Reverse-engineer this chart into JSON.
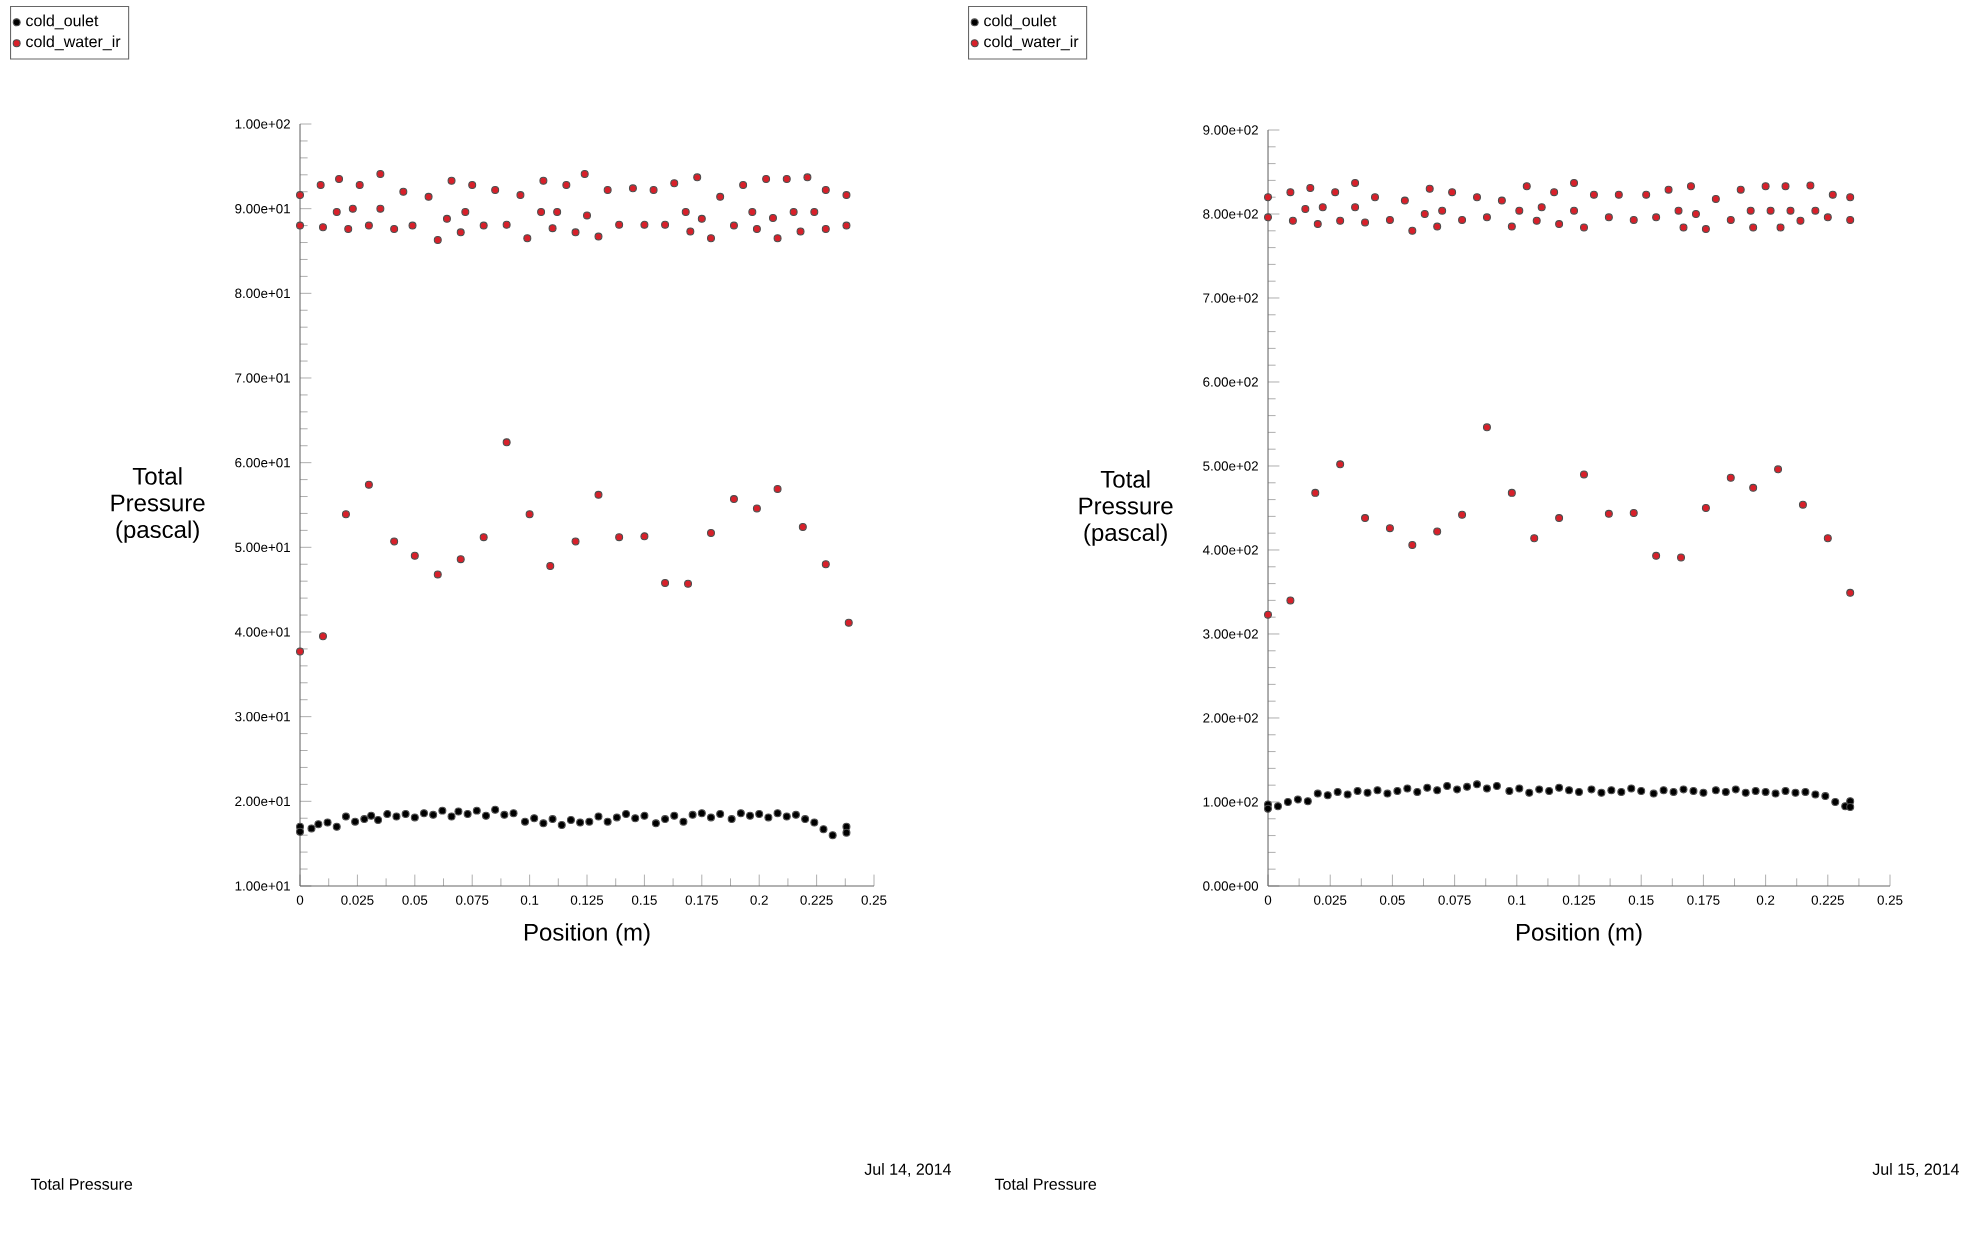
{
  "chart_data": [
    {
      "type": "scatter",
      "xlabel": "Position (m)",
      "ylabel": "Total Pressure (pascal)",
      "legend": "top left",
      "marker": "circle",
      "xlim": [
        0,
        0.25
      ],
      "ylim": [
        10,
        100
      ],
      "xticks": [
        0,
        0.025,
        0.05,
        0.075,
        0.1,
        0.125,
        0.15,
        0.175,
        0.2,
        0.225,
        0.25
      ],
      "yticks": [
        {
          "value": 10,
          "label": "1.00e+01"
        },
        {
          "value": 20,
          "label": "2.00e+01"
        },
        {
          "value": 30,
          "label": "3.00e+01"
        },
        {
          "value": 40,
          "label": "4.00e+01"
        },
        {
          "value": 50,
          "label": "5.00e+01"
        },
        {
          "value": 60,
          "label": "6.00e+01"
        },
        {
          "value": 70,
          "label": "7.00e+01"
        },
        {
          "value": 80,
          "label": "8.00e+01"
        },
        {
          "value": 90,
          "label": "9.00e+01"
        },
        {
          "value": 100,
          "label": "1.00e+02"
        }
      ],
      "series": [
        {
          "name": "cold_oulet",
          "color": "#000000",
          "x": [
            0,
            0,
            0.005,
            0.008,
            0.012,
            0.016,
            0.02,
            0.024,
            0.028,
            0.031,
            0.034,
            0.038,
            0.042,
            0.046,
            0.05,
            0.054,
            0.058,
            0.062,
            0.066,
            0.069,
            0.073,
            0.077,
            0.081,
            0.085,
            0.089,
            0.093,
            0.098,
            0.102,
            0.106,
            0.11,
            0.114,
            0.118,
            0.122,
            0.126,
            0.13,
            0.134,
            0.138,
            0.142,
            0.146,
            0.15,
            0.155,
            0.159,
            0.163,
            0.167,
            0.171,
            0.175,
            0.179,
            0.183,
            0.188,
            0.192,
            0.196,
            0.2,
            0.204,
            0.208,
            0.212,
            0.216,
            0.22,
            0.224,
            0.228,
            0.232,
            0.238,
            0.238
          ],
          "values": [
            17.0,
            16.4,
            16.8,
            17.3,
            17.5,
            17.0,
            18.2,
            17.6,
            17.9,
            18.3,
            17.8,
            18.5,
            18.2,
            18.5,
            18.1,
            18.6,
            18.4,
            18.9,
            18.2,
            18.8,
            18.5,
            18.9,
            18.3,
            19.0,
            18.4,
            18.6,
            17.6,
            18.0,
            17.4,
            17.9,
            17.2,
            17.8,
            17.5,
            17.6,
            18.2,
            17.6,
            18.1,
            18.5,
            18.0,
            18.3,
            17.4,
            17.9,
            18.3,
            17.6,
            18.4,
            18.6,
            18.1,
            18.5,
            17.9,
            18.6,
            18.3,
            18.5,
            18.1,
            18.6,
            18.2,
            18.4,
            17.9,
            17.5,
            16.7,
            16.0,
            17.0,
            16.3
          ]
        },
        {
          "name": "cold_water_ir",
          "color": "#d8202a",
          "x": [
            0,
            0,
            0.009,
            0.01,
            0.016,
            0.017,
            0.021,
            0.023,
            0.026,
            0.03,
            0.035,
            0.035,
            0.041,
            0.045,
            0.049,
            0.056,
            0.06,
            0.064,
            0.066,
            0.07,
            0.072,
            0.075,
            0.08,
            0.085,
            0.09,
            0.096,
            0.099,
            0.105,
            0.106,
            0.11,
            0.112,
            0.116,
            0.12,
            0.124,
            0.125,
            0.13,
            0.134,
            0.139,
            0.145,
            0.15,
            0.154,
            0.159,
            0.163,
            0.168,
            0.17,
            0.173,
            0.175,
            0.179,
            0.183,
            0.189,
            0.193,
            0.197,
            0.199,
            0.203,
            0.206,
            0.208,
            0.212,
            0.215,
            0.218,
            0.221,
            0.224,
            0.229,
            0.229,
            0.238,
            0.238,
            0,
            0.01,
            0.02,
            0.03,
            0.041,
            0.05,
            0.06,
            0.07,
            0.08,
            0.09,
            0.1,
            0.109,
            0.12,
            0.13,
            0.139,
            0.15,
            0.159,
            0.169,
            0.179,
            0.189,
            0.199,
            0.208,
            0.219,
            0.229,
            0.239
          ],
          "values": [
            91.6,
            88.0,
            92.8,
            87.8,
            89.6,
            93.5,
            87.6,
            90.0,
            92.8,
            88.0,
            94.1,
            90.0,
            87.6,
            92.0,
            88.0,
            91.4,
            86.3,
            88.8,
            93.3,
            87.2,
            89.6,
            92.8,
            88.0,
            92.2,
            88.1,
            91.6,
            86.5,
            89.6,
            93.3,
            87.7,
            89.6,
            92.8,
            87.2,
            94.1,
            89.2,
            86.7,
            92.2,
            88.1,
            92.4,
            88.1,
            92.2,
            88.1,
            93.0,
            89.6,
            87.3,
            93.7,
            88.8,
            86.5,
            91.4,
            88.0,
            92.8,
            89.6,
            87.6,
            93.5,
            88.9,
            86.5,
            93.5,
            89.6,
            87.3,
            93.7,
            89.6,
            92.2,
            87.6,
            91.6,
            88.0,
            37.7,
            39.5,
            53.9,
            57.4,
            50.7,
            49.0,
            46.8,
            48.6,
            51.2,
            62.4,
            53.9,
            47.8,
            50.7,
            56.2,
            51.2,
            51.3,
            45.8,
            45.7,
            51.7,
            55.7,
            54.6,
            56.9,
            52.4,
            48.0,
            41.1
          ]
        }
      ],
      "annotations": [
        "Total Pressure",
        "Jul 14, 2014"
      ]
    },
    {
      "type": "scatter",
      "xlabel": "Position (m)",
      "ylabel": "Total Pressure (pascal)",
      "legend": "top left",
      "marker": "circle",
      "xlim": [
        0,
        0.25
      ],
      "ylim": [
        0,
        900
      ],
      "xticks": [
        0,
        0.025,
        0.05,
        0.075,
        0.1,
        0.125,
        0.15,
        0.175,
        0.2,
        0.225,
        0.25
      ],
      "yticks": [
        {
          "value": 0,
          "label": "0.00e+00"
        },
        {
          "value": 100,
          "label": "1.00e+02"
        },
        {
          "value": 200,
          "label": "2.00e+02"
        },
        {
          "value": 300,
          "label": "3.00e+02"
        },
        {
          "value": 400,
          "label": "4.00e+02"
        },
        {
          "value": 500,
          "label": "5.00e+02"
        },
        {
          "value": 600,
          "label": "6.00e+02"
        },
        {
          "value": 700,
          "label": "7.00e+02"
        },
        {
          "value": 800,
          "label": "8.00e+02"
        },
        {
          "value": 900,
          "label": "9.00e+02"
        }
      ],
      "series": [
        {
          "name": "cold_oulet",
          "color": "#000000",
          "x": [
            0,
            0,
            0.004,
            0.008,
            0.012,
            0.016,
            0.02,
            0.024,
            0.028,
            0.032,
            0.036,
            0.04,
            0.044,
            0.048,
            0.052,
            0.056,
            0.06,
            0.064,
            0.068,
            0.072,
            0.076,
            0.08,
            0.084,
            0.088,
            0.092,
            0.097,
            0.101,
            0.105,
            0.109,
            0.113,
            0.117,
            0.121,
            0.125,
            0.13,
            0.134,
            0.138,
            0.142,
            0.146,
            0.15,
            0.155,
            0.159,
            0.163,
            0.167,
            0.171,
            0.175,
            0.18,
            0.184,
            0.188,
            0.192,
            0.196,
            0.2,
            0.204,
            0.208,
            0.212,
            0.216,
            0.22,
            0.224,
            0.228,
            0.232,
            0.234,
            0.234
          ],
          "values": [
            97,
            92,
            95,
            100,
            103,
            101,
            110,
            108,
            112,
            109,
            113,
            111,
            114,
            110,
            113,
            116,
            112,
            117,
            114,
            119,
            115,
            118,
            121,
            116,
            119,
            113,
            116,
            111,
            115,
            113,
            117,
            114,
            112,
            115,
            111,
            114,
            112,
            116,
            113,
            110,
            114,
            112,
            115,
            113,
            111,
            114,
            112,
            115,
            111,
            113,
            112,
            110,
            113,
            111,
            112,
            109,
            107,
            100,
            95,
            101,
            94
          ]
        },
        {
          "name": "cold_water_ir",
          "color": "#d8202a",
          "x": [
            0,
            0,
            0.009,
            0.01,
            0.015,
            0.017,
            0.02,
            0.022,
            0.027,
            0.029,
            0.035,
            0.035,
            0.039,
            0.043,
            0.049,
            0.055,
            0.058,
            0.063,
            0.065,
            0.068,
            0.07,
            0.074,
            0.078,
            0.084,
            0.088,
            0.094,
            0.098,
            0.101,
            0.104,
            0.108,
            0.11,
            0.115,
            0.117,
            0.123,
            0.123,
            0.127,
            0.131,
            0.137,
            0.141,
            0.147,
            0.152,
            0.156,
            0.161,
            0.165,
            0.167,
            0.17,
            0.172,
            0.176,
            0.18,
            0.186,
            0.19,
            0.194,
            0.195,
            0.2,
            0.202,
            0.206,
            0.208,
            0.21,
            0.214,
            0.218,
            0.22,
            0.225,
            0.227,
            0.234,
            0.234,
            0,
            0.009,
            0.019,
            0.029,
            0.039,
            0.049,
            0.058,
            0.068,
            0.078,
            0.088,
            0.098,
            0.107,
            0.117,
            0.127,
            0.137,
            0.147,
            0.156,
            0.166,
            0.176,
            0.186,
            0.195,
            0.205,
            0.215,
            0.225,
            0.234
          ],
          "values": [
            820,
            796,
            826,
            792,
            806,
            831,
            788,
            808,
            826,
            792,
            837,
            808,
            790,
            820,
            793,
            816,
            780,
            800,
            830,
            785,
            804,
            826,
            793,
            820,
            796,
            816,
            785,
            804,
            833,
            792,
            808,
            826,
            788,
            837,
            804,
            784,
            823,
            796,
            823,
            793,
            823,
            796,
            829,
            804,
            784,
            833,
            800,
            782,
            818,
            793,
            829,
            804,
            784,
            833,
            804,
            784,
            833,
            804,
            792,
            834,
            804,
            796,
            823,
            820,
            793,
            323,
            340,
            468,
            502,
            438,
            426,
            406,
            422,
            442,
            546,
            468,
            414,
            438,
            490,
            443,
            444,
            393,
            391,
            450,
            486,
            474,
            496,
            454,
            414,
            349
          ]
        }
      ],
      "annotations": [
        "Total Pressure",
        "Jul 15, 2014"
      ]
    }
  ]
}
